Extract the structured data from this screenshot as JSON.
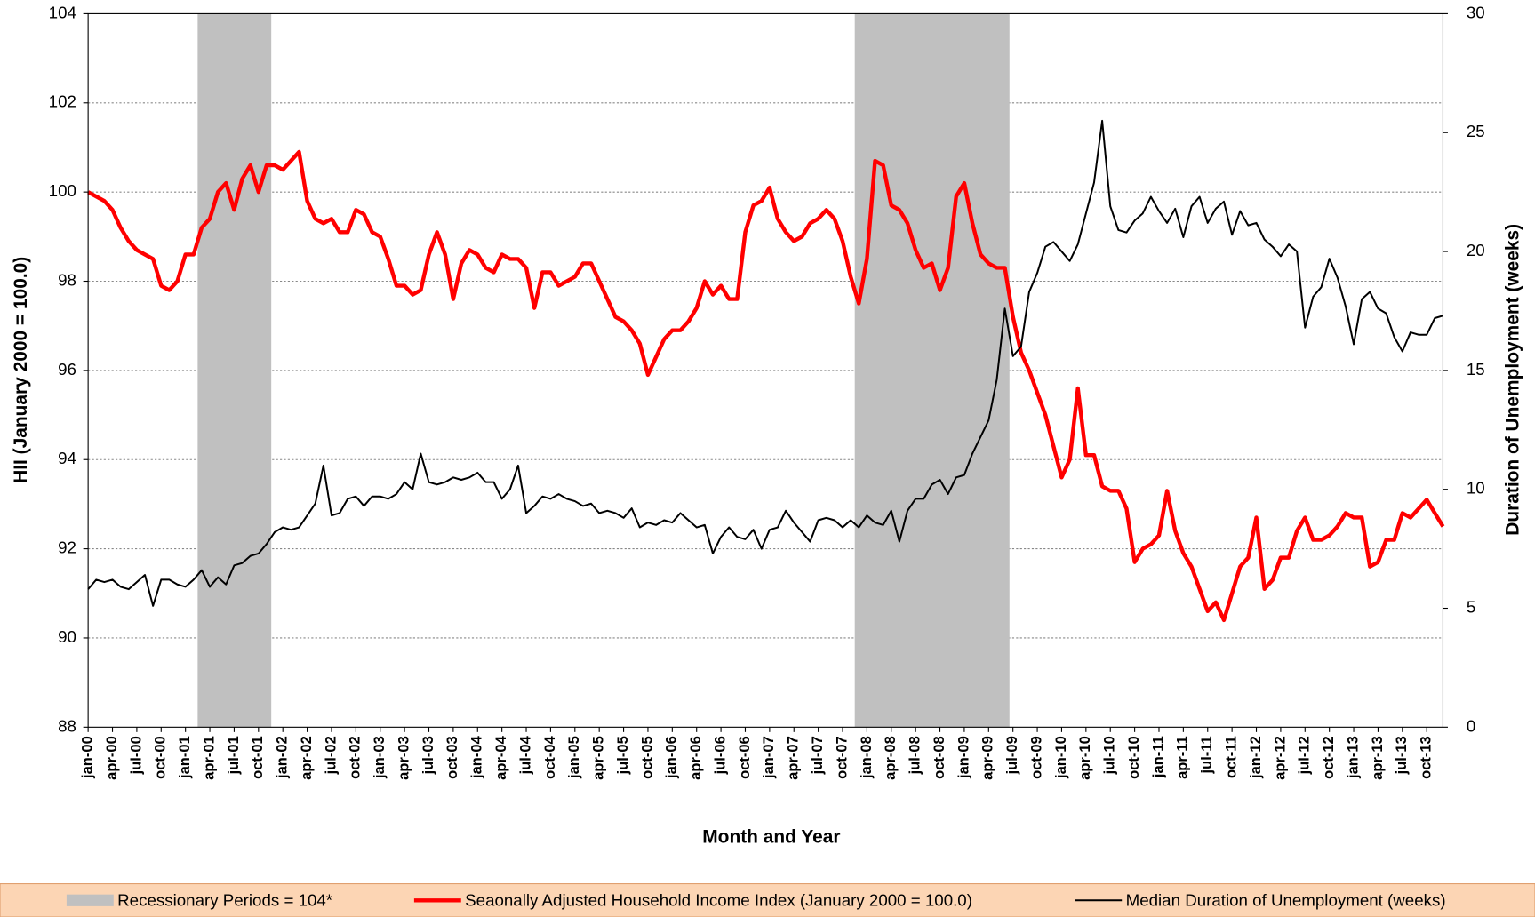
{
  "chart_data": {
    "type": "line",
    "xlabel": "Month and Year",
    "ylabel": "HII (January 2000 = 100.0)",
    "y2label": "Duration of Unemployment (weeks)",
    "categories": [
      "jan-00",
      null,
      null,
      "apr-00",
      null,
      null,
      "jul-00",
      null,
      null,
      "oct-00",
      null,
      null,
      "jan-01",
      null,
      null,
      "apr-01",
      null,
      null,
      "jul-01",
      null,
      null,
      "oct-01",
      null,
      null,
      "jan-02",
      null,
      null,
      "apr-02",
      null,
      null,
      "jul-02",
      null,
      null,
      "oct-02",
      null,
      null,
      "jan-03",
      null,
      null,
      "apr-03",
      null,
      null,
      "jul-03",
      null,
      null,
      "oct-03",
      null,
      null,
      "jan-04",
      null,
      null,
      "apr-04",
      null,
      null,
      "jul-04",
      null,
      null,
      "oct-04",
      null,
      null,
      "jan-05",
      null,
      null,
      "apr-05",
      null,
      null,
      "jul-05",
      null,
      null,
      "oct-05",
      null,
      null,
      "jan-06",
      null,
      null,
      "apr-06",
      null,
      null,
      "jul-06",
      null,
      null,
      "oct-06",
      null,
      null,
      "jan-07",
      null,
      null,
      "apr-07",
      null,
      null,
      "jul-07",
      null,
      null,
      "oct-07",
      null,
      null,
      "jan-08",
      null,
      null,
      "apr-08",
      null,
      null,
      "jul-08",
      null,
      null,
      "oct-08",
      null,
      null,
      "jan-09",
      null,
      null,
      "apr-09",
      null,
      null,
      "jul-09",
      null,
      null,
      "oct-09",
      null,
      null,
      "jan-10",
      null,
      null,
      "apr-10",
      null,
      null,
      "jul-10",
      null,
      null,
      "oct-10",
      null,
      null,
      "jan-11",
      null,
      null,
      "apr-11",
      null,
      null,
      "jul-11",
      null,
      null,
      "oct-11",
      null,
      null,
      "jan-12",
      null,
      null,
      "apr-12",
      null,
      null,
      "jul-12",
      null,
      null,
      "oct-12",
      null,
      null,
      "jan-13",
      null,
      null,
      "apr-13",
      null,
      null,
      "jul-13",
      null,
      null,
      "oct-13",
      null,
      null
    ],
    "series": [
      {
        "name": "Recessionary Periods = 104*",
        "type": "bar",
        "color": "#c0c0c0",
        "values": [
          null,
          null,
          null,
          null,
          null,
          null,
          null,
          null,
          null,
          null,
          null,
          null,
          null,
          null,
          104,
          104,
          104,
          104,
          104,
          104,
          104,
          104,
          104,
          null,
          null,
          null,
          null,
          null,
          null,
          null,
          null,
          null,
          null,
          null,
          null,
          null,
          null,
          null,
          null,
          null,
          null,
          null,
          null,
          null,
          null,
          null,
          null,
          null,
          null,
          null,
          null,
          null,
          null,
          null,
          null,
          null,
          null,
          null,
          null,
          null,
          null,
          null,
          null,
          null,
          null,
          null,
          null,
          null,
          null,
          null,
          null,
          null,
          null,
          null,
          null,
          null,
          null,
          null,
          null,
          null,
          null,
          null,
          null,
          null,
          null,
          null,
          null,
          null,
          null,
          null,
          null,
          null,
          null,
          null,
          null,
          104,
          104,
          104,
          104,
          104,
          104,
          104,
          104,
          104,
          104,
          104,
          104,
          104,
          104,
          104,
          104,
          104,
          104,
          104,
          null,
          null,
          null,
          null,
          null,
          null,
          null,
          null,
          null,
          null,
          null,
          null,
          null,
          null,
          null,
          null,
          null,
          null,
          null,
          null,
          null,
          null,
          null,
          null,
          null,
          null,
          null,
          null,
          null,
          null,
          null,
          null,
          null,
          null,
          null,
          null,
          null,
          null,
          null,
          null,
          null,
          null,
          null,
          null,
          null,
          null,
          null,
          null,
          null,
          null,
          null,
          null,
          null,
          null
        ]
      },
      {
        "name": "Seaonally Adjusted Household Income Index (January 2000 = 100.0)",
        "type": "line",
        "color": "#ff0000",
        "values": [
          100.0,
          99.9,
          99.8,
          99.6,
          99.2,
          98.9,
          98.7,
          98.6,
          98.5,
          97.9,
          97.8,
          98.0,
          98.6,
          98.6,
          99.2,
          99.4,
          100.0,
          100.2,
          99.6,
          100.3,
          100.6,
          100.0,
          100.6,
          100.6,
          100.5,
          100.7,
          100.9,
          99.8,
          99.4,
          99.3,
          99.4,
          99.1,
          99.1,
          99.6,
          99.5,
          99.1,
          99.0,
          98.5,
          97.9,
          97.9,
          97.7,
          97.8,
          98.6,
          99.1,
          98.6,
          97.6,
          98.4,
          98.7,
          98.6,
          98.3,
          98.2,
          98.6,
          98.5,
          98.5,
          98.3,
          97.4,
          98.2,
          98.2,
          97.9,
          98.0,
          98.1,
          98.4,
          98.4,
          98.0,
          97.6,
          97.2,
          97.1,
          96.9,
          96.6,
          95.9,
          96.3,
          96.7,
          96.9,
          96.9,
          97.1,
          97.4,
          98.0,
          97.7,
          97.9,
          97.6,
          97.6,
          99.1,
          99.7,
          99.8,
          100.1,
          99.4,
          99.1,
          98.9,
          99.0,
          99.3,
          99.4,
          99.6,
          99.4,
          98.9,
          98.1,
          97.5,
          98.5,
          100.7,
          100.6,
          99.7,
          99.6,
          99.3,
          98.7,
          98.3,
          98.4,
          97.8,
          98.3,
          99.9,
          100.2,
          99.3,
          98.6,
          98.4,
          98.3,
          98.3,
          97.2,
          96.4,
          96.0,
          95.5,
          95.0,
          94.3,
          93.6,
          94.0,
          95.6,
          94.1,
          94.1,
          93.4,
          93.3,
          93.3,
          92.9,
          91.7,
          92.0,
          92.1,
          92.3,
          93.3,
          92.4,
          91.9,
          91.6,
          91.1,
          90.6,
          90.8,
          90.4,
          91.0,
          91.6,
          91.8,
          92.7,
          91.1,
          91.3,
          91.8,
          91.8,
          92.4,
          92.7,
          92.2,
          92.2,
          92.3,
          92.5,
          92.8,
          92.7,
          92.7,
          91.6,
          91.7,
          92.2,
          92.2,
          92.8,
          92.7,
          92.9,
          93.1,
          92.8,
          92.5
        ]
      },
      {
        "name": "Median Duration of Unemployment (weeks)",
        "type": "line",
        "axis": "y2",
        "color": "#000000",
        "values": [
          5.8,
          6.2,
          6.1,
          6.2,
          5.9,
          5.8,
          6.1,
          6.4,
          5.1,
          6.2,
          6.2,
          6.0,
          5.9,
          6.2,
          6.6,
          5.9,
          6.3,
          6.0,
          6.8,
          6.9,
          7.2,
          7.3,
          7.7,
          8.2,
          8.4,
          8.3,
          8.4,
          8.9,
          9.4,
          11.0,
          8.9,
          9.0,
          9.6,
          9.7,
          9.3,
          9.7,
          9.7,
          9.6,
          9.8,
          10.3,
          10.0,
          11.5,
          10.3,
          10.2,
          10.3,
          10.5,
          10.4,
          10.5,
          10.7,
          10.3,
          10.3,
          9.6,
          10.0,
          11.0,
          9.0,
          9.3,
          9.7,
          9.6,
          9.8,
          9.6,
          9.5,
          9.3,
          9.4,
          9.0,
          9.1,
          9.0,
          8.8,
          9.2,
          8.4,
          8.6,
          8.5,
          8.7,
          8.6,
          9.0,
          8.7,
          8.4,
          8.5,
          7.3,
          8.0,
          8.4,
          8.0,
          7.9,
          8.3,
          7.5,
          8.3,
          8.4,
          9.1,
          8.6,
          8.2,
          7.8,
          8.7,
          8.8,
          8.7,
          8.4,
          8.7,
          8.4,
          8.9,
          8.6,
          8.5,
          9.1,
          7.8,
          9.1,
          9.6,
          9.6,
          10.2,
          10.4,
          9.8,
          10.5,
          10.6,
          11.5,
          12.2,
          12.9,
          14.6,
          17.6,
          15.6,
          16.0,
          18.3,
          19.1,
          20.2,
          20.4,
          20.0,
          19.6,
          20.3,
          21.6,
          22.9,
          25.5,
          21.9,
          20.9,
          20.8,
          21.3,
          21.6,
          22.3,
          21.7,
          21.2,
          21.8,
          20.6,
          21.9,
          22.3,
          21.2,
          21.8,
          22.1,
          20.7,
          21.7,
          21.1,
          21.2,
          20.5,
          20.2,
          19.8,
          20.3,
          20.0,
          16.8,
          18.1,
          18.5,
          19.7,
          18.9,
          17.7,
          16.1,
          18.0,
          18.3,
          17.6,
          17.4,
          16.4,
          15.8,
          16.6,
          16.5,
          16.5,
          17.2,
          17.3
        ]
      }
    ],
    "ylim": [
      88,
      104
    ],
    "yticks": [
      88,
      90,
      92,
      94,
      96,
      98,
      100,
      102,
      104
    ],
    "y2lim": [
      0,
      30
    ],
    "y2ticks": [
      0,
      5,
      10,
      15,
      20,
      25,
      30
    ],
    "grid": true,
    "legend": "bottom"
  }
}
